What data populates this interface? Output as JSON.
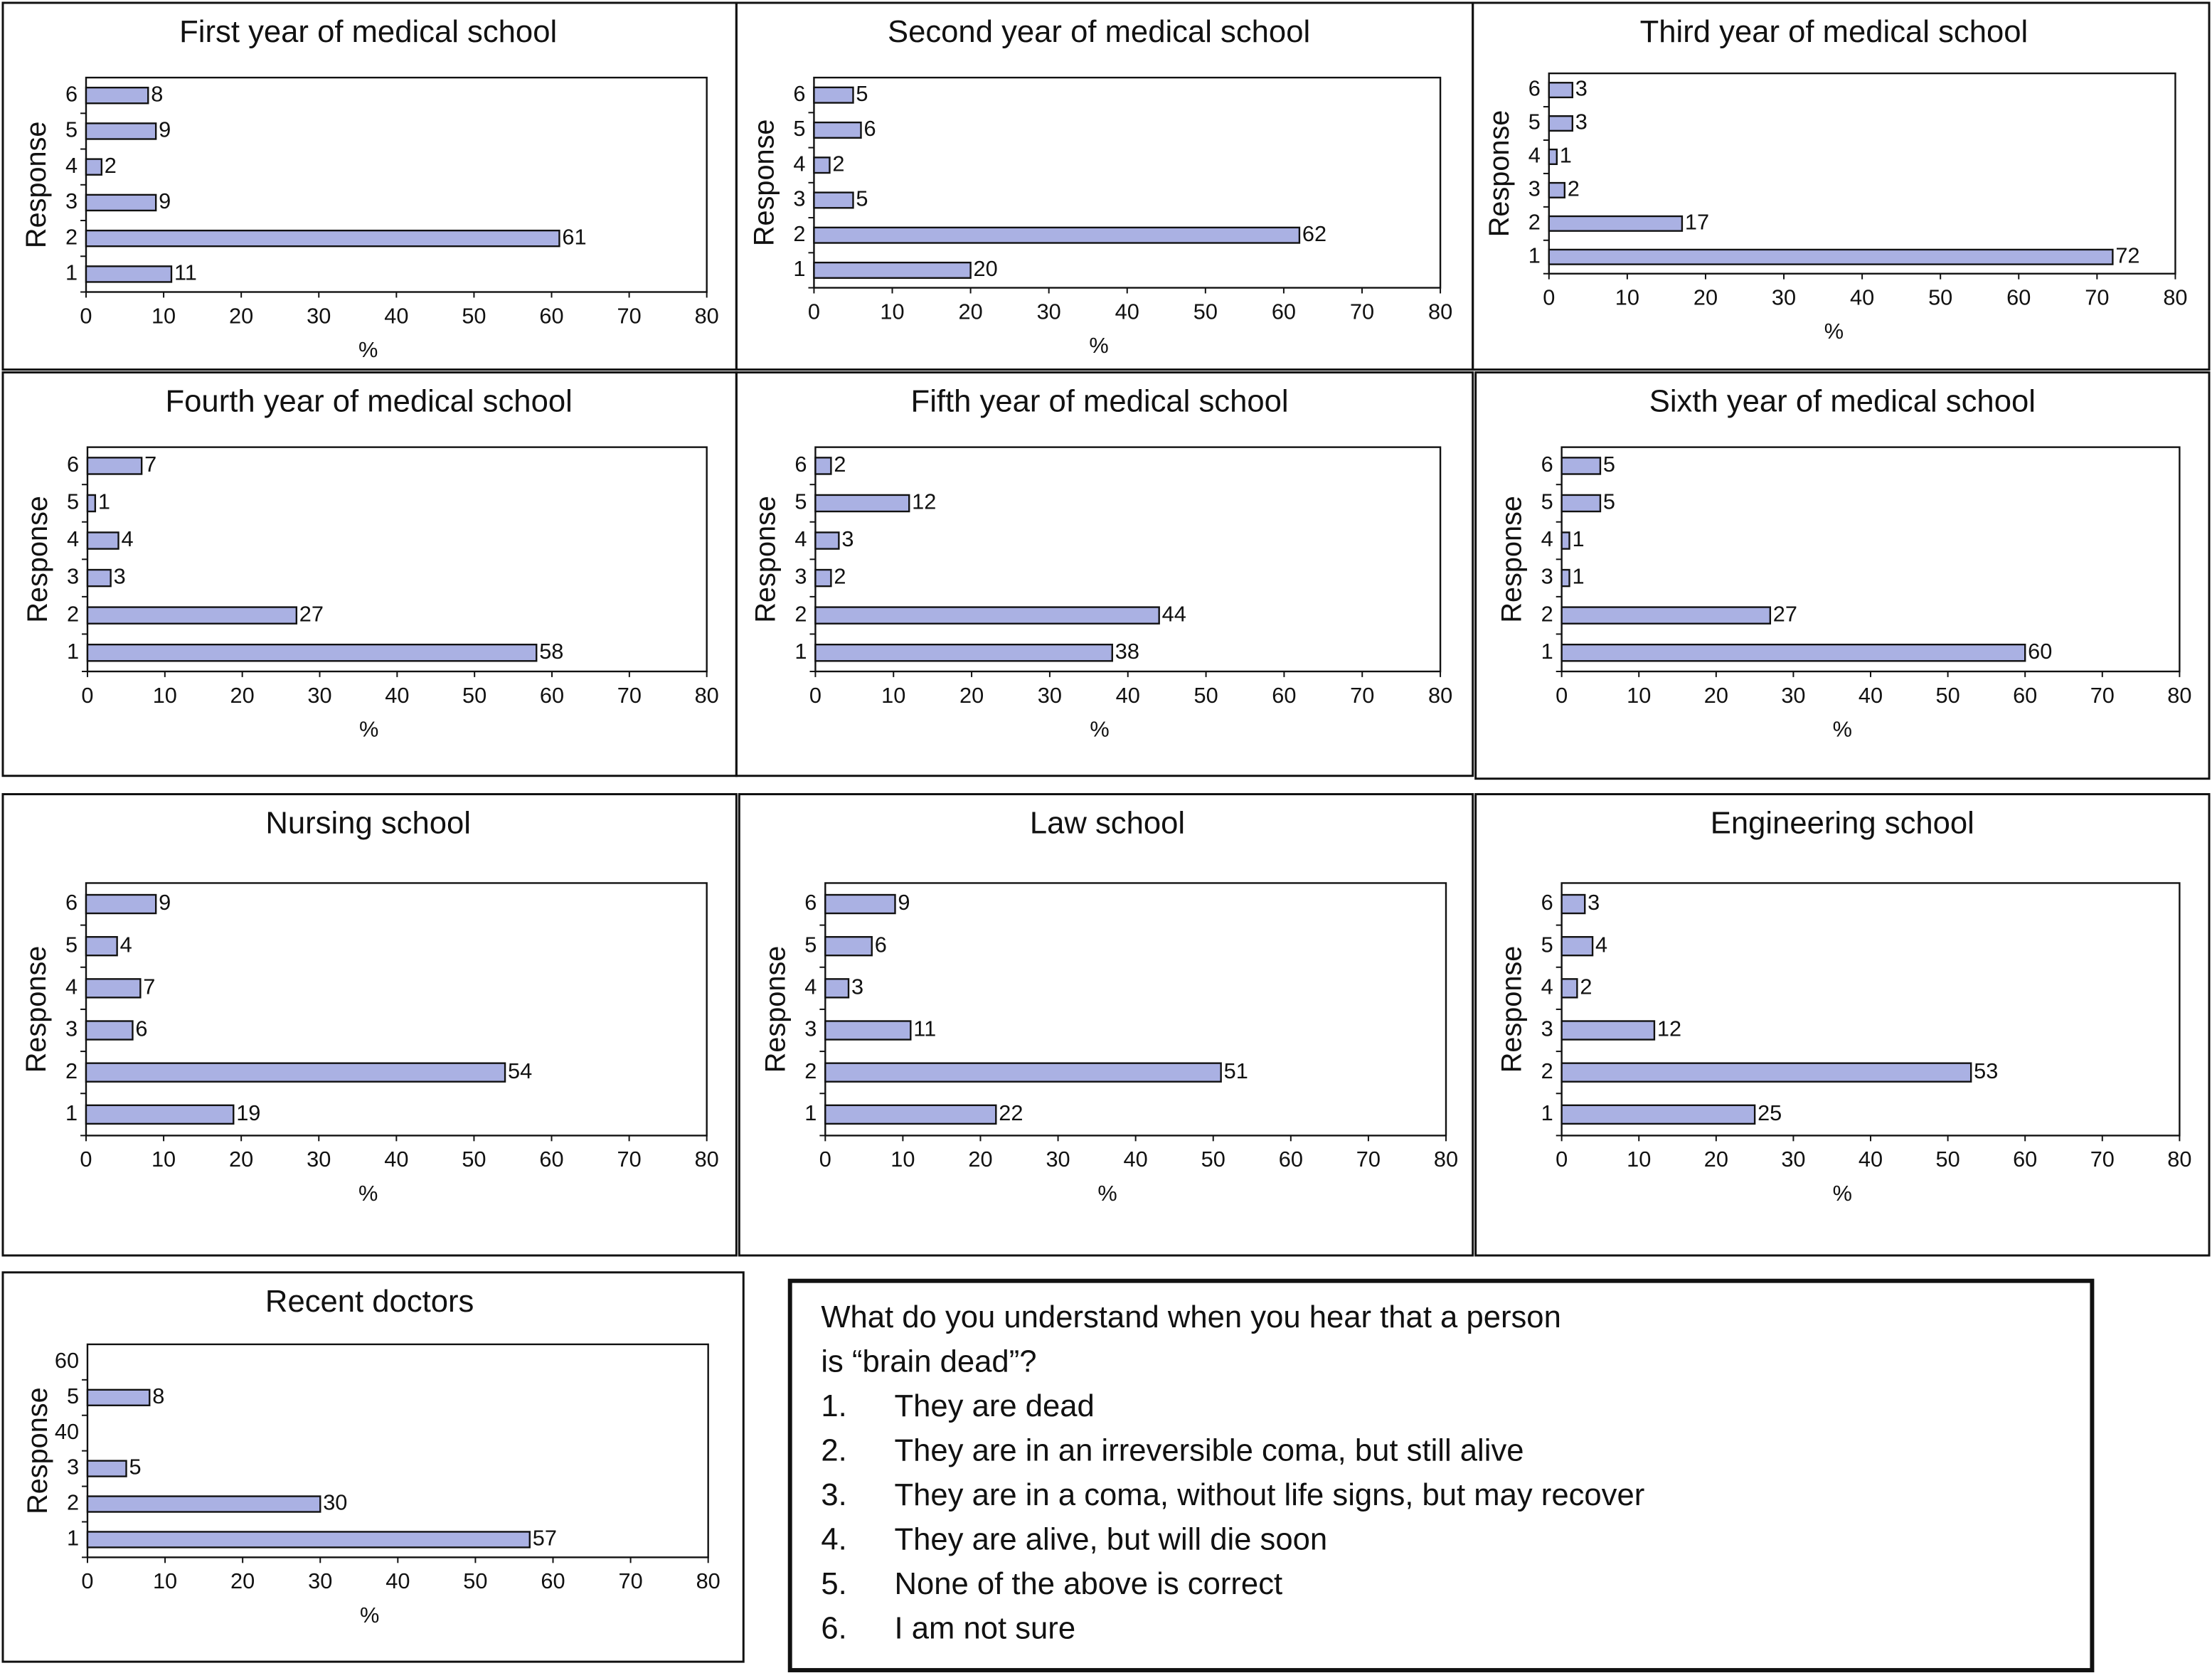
{
  "chart_data": [
    {
      "type": "bar",
      "orientation": "horizontal",
      "title": "First year of medical school",
      "x_label": "%",
      "y_label": "Response",
      "categories": [
        "1",
        "2",
        "3",
        "4",
        "5",
        "6"
      ],
      "values": [
        11,
        61,
        9,
        2,
        9,
        8
      ],
      "color": "#aab1e3",
      "xlim": [
        0,
        80
      ],
      "xticks": [
        0,
        10,
        20,
        30,
        40,
        50,
        60,
        70,
        80
      ]
    },
    {
      "type": "bar",
      "orientation": "horizontal",
      "title": "Second year of medical school",
      "x_label": "%",
      "y_label": "Response",
      "categories": [
        "1",
        "2",
        "3",
        "4",
        "5",
        "6"
      ],
      "values": [
        20,
        62,
        5,
        2,
        6,
        5
      ],
      "color": "#aab1e3",
      "xlim": [
        0,
        80
      ],
      "xticks": [
        0,
        10,
        20,
        30,
        40,
        50,
        60,
        70,
        80
      ]
    },
    {
      "type": "bar",
      "orientation": "horizontal",
      "title": "Third year of medical school",
      "x_label": "%",
      "y_label": "Response",
      "categories": [
        "1",
        "2",
        "3",
        "4",
        "5",
        "6"
      ],
      "values": [
        72,
        17,
        2,
        1,
        3,
        3
      ],
      "color": "#aab1e3",
      "xlim": [
        0,
        80
      ],
      "xticks": [
        0,
        10,
        20,
        30,
        40,
        50,
        60,
        70,
        80
      ]
    },
    {
      "type": "bar",
      "orientation": "horizontal",
      "title": "Fourth year of medical school",
      "x_label": "%",
      "y_label": "Response",
      "categories": [
        "1",
        "2",
        "3",
        "4",
        "5",
        "6"
      ],
      "values": [
        58,
        27,
        3,
        4,
        1,
        7
      ],
      "color": "#aab1e3",
      "xlim": [
        0,
        80
      ],
      "xticks": [
        0,
        10,
        20,
        30,
        40,
        50,
        60,
        70,
        80
      ]
    },
    {
      "type": "bar",
      "orientation": "horizontal",
      "title": "Fifth year of medical school",
      "x_label": "%",
      "y_label": "Response",
      "categories": [
        "1",
        "2",
        "3",
        "4",
        "5",
        "6"
      ],
      "values": [
        38,
        44,
        2,
        3,
        12,
        2
      ],
      "color": "#aab1e3",
      "xlim": [
        0,
        80
      ],
      "xticks": [
        0,
        10,
        20,
        30,
        40,
        50,
        60,
        70,
        80
      ]
    },
    {
      "type": "bar",
      "orientation": "horizontal",
      "title": "Sixth year of medical school",
      "x_label": "%",
      "y_label": "Response",
      "categories": [
        "1",
        "2",
        "3",
        "4",
        "5",
        "6"
      ],
      "values": [
        60,
        27,
        1,
        1,
        5,
        5
      ],
      "color": "#aab1e3",
      "xlim": [
        0,
        80
      ],
      "xticks": [
        0,
        10,
        20,
        30,
        40,
        50,
        60,
        70,
        80
      ]
    },
    {
      "type": "bar",
      "orientation": "horizontal",
      "title": "Nursing school",
      "x_label": "%",
      "y_label": "Response",
      "categories": [
        "1",
        "2",
        "3",
        "4",
        "5",
        "6"
      ],
      "values": [
        19,
        54,
        6,
        7,
        4,
        9
      ],
      "color": "#aab1e3",
      "xlim": [
        0,
        80
      ],
      "xticks": [
        0,
        10,
        20,
        30,
        40,
        50,
        60,
        70,
        80
      ]
    },
    {
      "type": "bar",
      "orientation": "horizontal",
      "title": "Law school",
      "x_label": "%",
      "y_label": "Response",
      "categories": [
        "1",
        "2",
        "3",
        "4",
        "5",
        "6"
      ],
      "values": [
        22,
        51,
        11,
        3,
        6,
        9
      ],
      "color": "#aab1e3",
      "xlim": [
        0,
        80
      ],
      "xticks": [
        0,
        10,
        20,
        30,
        40,
        50,
        60,
        70,
        80
      ]
    },
    {
      "type": "bar",
      "orientation": "horizontal",
      "title": "Engineering school",
      "x_label": "%",
      "y_label": "Response",
      "categories": [
        "1",
        "2",
        "3",
        "4",
        "5",
        "6"
      ],
      "values": [
        25,
        53,
        12,
        2,
        4,
        3
      ],
      "color": "#aab1e3",
      "xlim": [
        0,
        80
      ],
      "xticks": [
        0,
        10,
        20,
        30,
        40,
        50,
        60,
        70,
        80
      ]
    },
    {
      "type": "bar",
      "orientation": "horizontal",
      "title": "Recent doctors",
      "x_label": "%",
      "y_label": "Response",
      "categories": [
        "1",
        "2",
        "3",
        "40",
        "5",
        "60"
      ],
      "values": [
        57,
        30,
        5,
        null,
        8,
        null
      ],
      "color": "#aab1e3",
      "xlim": [
        0,
        80
      ],
      "xticks": [
        0,
        10,
        20,
        30,
        40,
        50,
        60,
        70,
        80
      ]
    }
  ],
  "question_box": {
    "question": [
      "What do you understand when you hear that a person",
      "is “brain dead”?"
    ],
    "items": [
      {
        "number": "1.",
        "text": "They are dead"
      },
      {
        "number": "2.",
        "text": "They are in an irreversible coma, but still alive"
      },
      {
        "number": "3.",
        "text": "They are in a coma, without life signs, but may recover"
      },
      {
        "number": "4.",
        "text": "They are alive, but will die soon"
      },
      {
        "number": "5.",
        "text": "None of the above is correct"
      },
      {
        "number": "6.",
        "text": "I am not sure"
      }
    ]
  }
}
